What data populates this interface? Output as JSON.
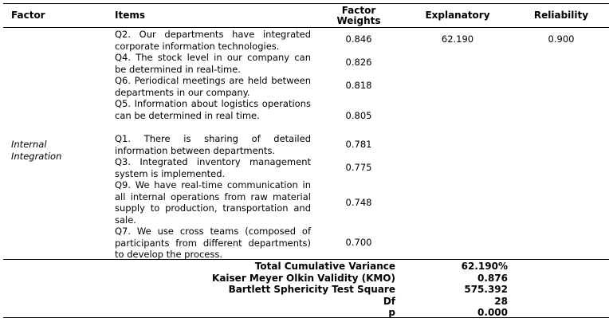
{
  "headers": {
    "factor": "Factor",
    "items": "Items",
    "weights_line1": "Factor",
    "weights_line2": "Weights",
    "explanatory": "Explanatory",
    "reliability": "Reliability"
  },
  "factor_name_line1": "Internal",
  "factor_name_line2": "Integration",
  "explanatory_value": "62.190",
  "reliability_value": "0.900",
  "rows": [
    {
      "item": "Q2. Our departments have integrated corporate information technologies.",
      "weight": "0.846"
    },
    {
      "item": "Q4. The stock level in our company can be determined in real-time.",
      "weight": "0.826"
    },
    {
      "item": "Q6. Periodical meetings are held between departments in our company.",
      "weight": "0.818"
    },
    {
      "item": "Q5. Information about logistics operations can be determined in real time.",
      "weight": "0.805"
    },
    {
      "item": "Q1. There is sharing of detailed information between departments.",
      "weight": "0.781"
    },
    {
      "item": "Q3. Integrated inventory management system is implemented.",
      "weight": "0.775"
    },
    {
      "item": "Q9. We have real-time communication in all internal operations from raw material supply to production, transportation and sale.",
      "weight": "0.748"
    },
    {
      "item": "Q7. We use cross teams (composed of participants from different departments) to develop the process.",
      "weight": "0.700"
    }
  ],
  "summary": [
    {
      "label": "Total Cumulative Variance",
      "value": "62.190%"
    },
    {
      "label": "Kaiser Meyer Olkin Validity (KMO)",
      "value": "0.876"
    },
    {
      "label": "Bartlett Sphericity Test Square",
      "value": "575.392"
    },
    {
      "label": "Df",
      "value": "28"
    },
    {
      "label": "p",
      "value": "0.000"
    }
  ]
}
